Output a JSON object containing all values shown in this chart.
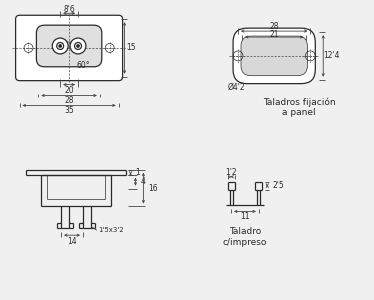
{
  "bg_color": "#f0f0f0",
  "line_color": "#2a2a2a",
  "dim_color": "#444444",
  "text_color": "#2a2a2a",
  "annotations": {
    "dim_8_6": "8'6",
    "dim_15": "15",
    "dim_60": "60°",
    "dim_20": "20",
    "dim_28_front": "28",
    "dim_35": "35",
    "dim_28_side": "28",
    "dim_21": "21",
    "dim_12_4": "12'4",
    "dim_dia": "Ø4'2",
    "label_taladros": "Taladros fijación\na panel",
    "dim_1": "1",
    "dim_4": "4",
    "dim_16": "16",
    "dim_14": "14",
    "dim_pin": "1'5x3'2",
    "dim_1_2": "1'2",
    "dim_11": "11",
    "dim_2_5": "2'5",
    "label_taladro": "Taladro\nc/impreso"
  }
}
